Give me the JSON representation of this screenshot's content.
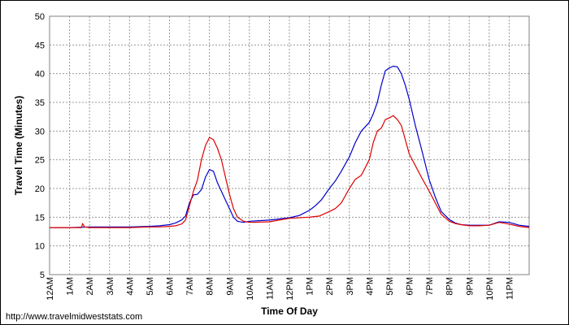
{
  "source_url": "http://www.travelmidweststats.com",
  "chart_data": {
    "type": "line",
    "title": "",
    "xlabel": "Time Of Day",
    "ylabel": "Travel Time (Minutes)",
    "ylim": [
      5,
      50
    ],
    "yticks": [
      5,
      10,
      15,
      20,
      25,
      30,
      35,
      40,
      45,
      50
    ],
    "xlim": [
      0,
      24
    ],
    "xtick_values": [
      0,
      1,
      2,
      3,
      4,
      5,
      6,
      7,
      8,
      9,
      10,
      11,
      12,
      13,
      14,
      15,
      16,
      17,
      18,
      19,
      20,
      21,
      22,
      23
    ],
    "xtick_labels": [
      "12AM",
      "1AM",
      "2AM",
      "3AM",
      "4AM",
      "5AM",
      "6AM",
      "7AM",
      "8AM",
      "9AM",
      "10AM",
      "11AM",
      "12PM",
      "1PM",
      "2PM",
      "3PM",
      "4PM",
      "5PM",
      "6PM",
      "7PM",
      "8PM",
      "9PM",
      "10PM",
      "11PM"
    ],
    "grid": true,
    "grid_color": "#999999",
    "plot_background": "#ffffff",
    "legend": "none",
    "series": [
      {
        "color": "#0000cc",
        "x": [
          0,
          1,
          2,
          3,
          4,
          5,
          5.5,
          6,
          6.3,
          6.6,
          6.8,
          7,
          7.2,
          7.4,
          7.6,
          7.8,
          8,
          8.2,
          8.4,
          8.6,
          8.8,
          9,
          9.2,
          9.4,
          9.7,
          10,
          11,
          12,
          12.5,
          13,
          13.3,
          13.6,
          14,
          14.3,
          14.6,
          15,
          15.3,
          15.6,
          16,
          16.2,
          16.4,
          16.6,
          16.8,
          17,
          17.2,
          17.4,
          17.6,
          17.8,
          18,
          18.3,
          18.6,
          19,
          19.3,
          19.6,
          20,
          20.3,
          20.6,
          21,
          21.5,
          22,
          22.5,
          23,
          23.5,
          24
        ],
        "y": [
          13.2,
          13.2,
          13.3,
          13.3,
          13.3,
          13.4,
          13.5,
          13.7,
          14,
          14.5,
          15.2,
          17.5,
          18.9,
          19,
          19.8,
          22,
          23.3,
          23,
          21,
          19.5,
          18,
          16.5,
          15,
          14.3,
          14.1,
          14.3,
          14.5,
          14.9,
          15.3,
          16.2,
          17,
          18,
          20,
          21.3,
          23,
          25.5,
          28,
          30,
          31.5,
          33,
          35,
          38,
          40.5,
          41,
          41.3,
          41.2,
          40,
          38,
          35.5,
          31,
          27,
          21.5,
          18.5,
          16,
          14.6,
          14,
          13.7,
          13.6,
          13.6,
          13.6,
          14.2,
          14.1,
          13.6,
          13.4
        ]
      },
      {
        "color": "#dd0000",
        "x": [
          0,
          1,
          1.6,
          1.65,
          1.75,
          2,
          3,
          4,
          5,
          5.5,
          6,
          6.3,
          6.6,
          6.8,
          7,
          7.2,
          7.4,
          7.6,
          7.8,
          8,
          8.2,
          8.4,
          8.6,
          8.8,
          9,
          9.2,
          9.4,
          9.7,
          10,
          11,
          12,
          13,
          13.5,
          14,
          14.3,
          14.6,
          15,
          15.3,
          15.6,
          16,
          16.2,
          16.4,
          16.6,
          16.8,
          17,
          17.2,
          17.4,
          17.6,
          17.8,
          18,
          18.3,
          18.6,
          19,
          19.3,
          19.6,
          20,
          20.3,
          20.6,
          21,
          21.5,
          22,
          22.5,
          23,
          23.5,
          24
        ],
        "y": [
          13.2,
          13.2,
          13.2,
          13.9,
          13.3,
          13.2,
          13.2,
          13.2,
          13.3,
          13.3,
          13.4,
          13.5,
          13.8,
          14.5,
          17,
          19.5,
          21.5,
          25,
          27.5,
          28.9,
          28.5,
          27,
          25,
          22,
          19,
          16.5,
          15,
          14.3,
          14.1,
          14.2,
          14.8,
          15,
          15.2,
          16,
          16.5,
          17.5,
          20,
          21.6,
          22.3,
          25,
          28,
          30,
          30.5,
          32,
          32.3,
          32.7,
          32,
          31,
          28.5,
          26,
          24,
          22,
          19.5,
          17.5,
          15.5,
          14.3,
          13.9,
          13.7,
          13.5,
          13.5,
          13.6,
          14.1,
          13.8,
          13.4,
          13.2
        ]
      }
    ]
  }
}
